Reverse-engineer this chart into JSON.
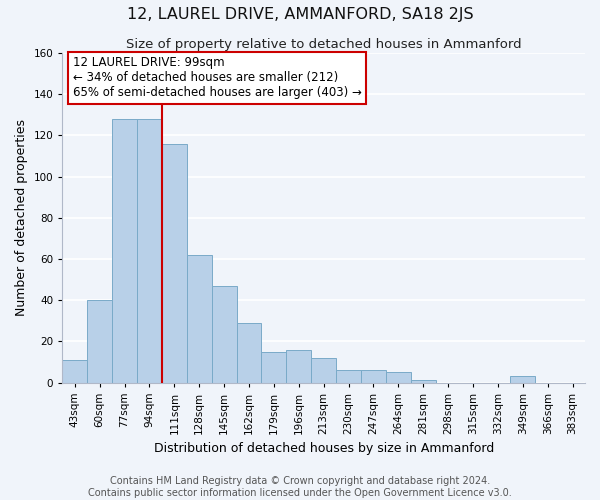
{
  "title": "12, LAUREL DRIVE, AMMANFORD, SA18 2JS",
  "subtitle": "Size of property relative to detached houses in Ammanford",
  "xlabel": "Distribution of detached houses by size in Ammanford",
  "ylabel": "Number of detached properties",
  "bar_labels": [
    "43sqm",
    "60sqm",
    "77sqm",
    "94sqm",
    "111sqm",
    "128sqm",
    "145sqm",
    "162sqm",
    "179sqm",
    "196sqm",
    "213sqm",
    "230sqm",
    "247sqm",
    "264sqm",
    "281sqm",
    "298sqm",
    "315sqm",
    "332sqm",
    "349sqm",
    "366sqm",
    "383sqm"
  ],
  "bar_values": [
    11,
    40,
    128,
    128,
    116,
    62,
    47,
    29,
    15,
    16,
    12,
    6,
    6,
    5,
    1,
    0,
    0,
    0,
    3,
    0,
    0
  ],
  "bar_color": "#b8d0e8",
  "bar_edge_color": "#7aaac8",
  "red_line_x": 3.5,
  "annotation_text": "12 LAUREL DRIVE: 99sqm\n← 34% of detached houses are smaller (212)\n65% of semi-detached houses are larger (403) →",
  "annotation_box_color": "#ffffff",
  "annotation_box_edge": "#cc0000",
  "ylim": [
    0,
    160
  ],
  "yticks": [
    0,
    20,
    40,
    60,
    80,
    100,
    120,
    140,
    160
  ],
  "footer_line1": "Contains HM Land Registry data © Crown copyright and database right 2024.",
  "footer_line2": "Contains public sector information licensed under the Open Government Licence v3.0.",
  "bg_color": "#f0f4fa",
  "grid_color": "#ffffff",
  "title_fontsize": 11.5,
  "subtitle_fontsize": 9.5,
  "axis_label_fontsize": 9,
  "tick_fontsize": 7.5,
  "annotation_fontsize": 8.5,
  "footer_fontsize": 7
}
